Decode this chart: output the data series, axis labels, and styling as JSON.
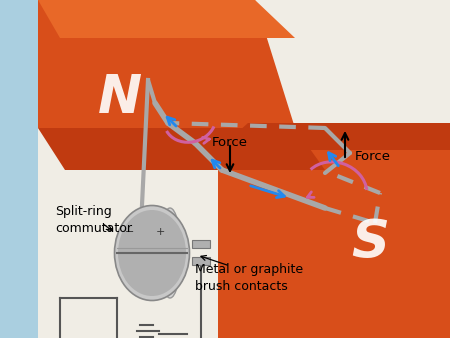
{
  "bg_left": "#aacfe0",
  "bg_main": "#f0ede5",
  "mag_orange": "#d94e18",
  "mag_dark": "#b83a10",
  "mag_light": "#e86030",
  "coil_gray": "#a8a8a8",
  "coil_dark": "#707070",
  "arrow_blue": "#2288ee",
  "arrow_pink": "#d060a0",
  "label_N": "N",
  "label_S": "S",
  "label_force_top": "Force",
  "label_force_bottom": "Force",
  "label_split_ring": "Split-ring\ncommutator",
  "label_brush": "Metal or graphite\nbrush contacts",
  "fig_width": 4.5,
  "fig_height": 3.38,
  "dpi": 100
}
